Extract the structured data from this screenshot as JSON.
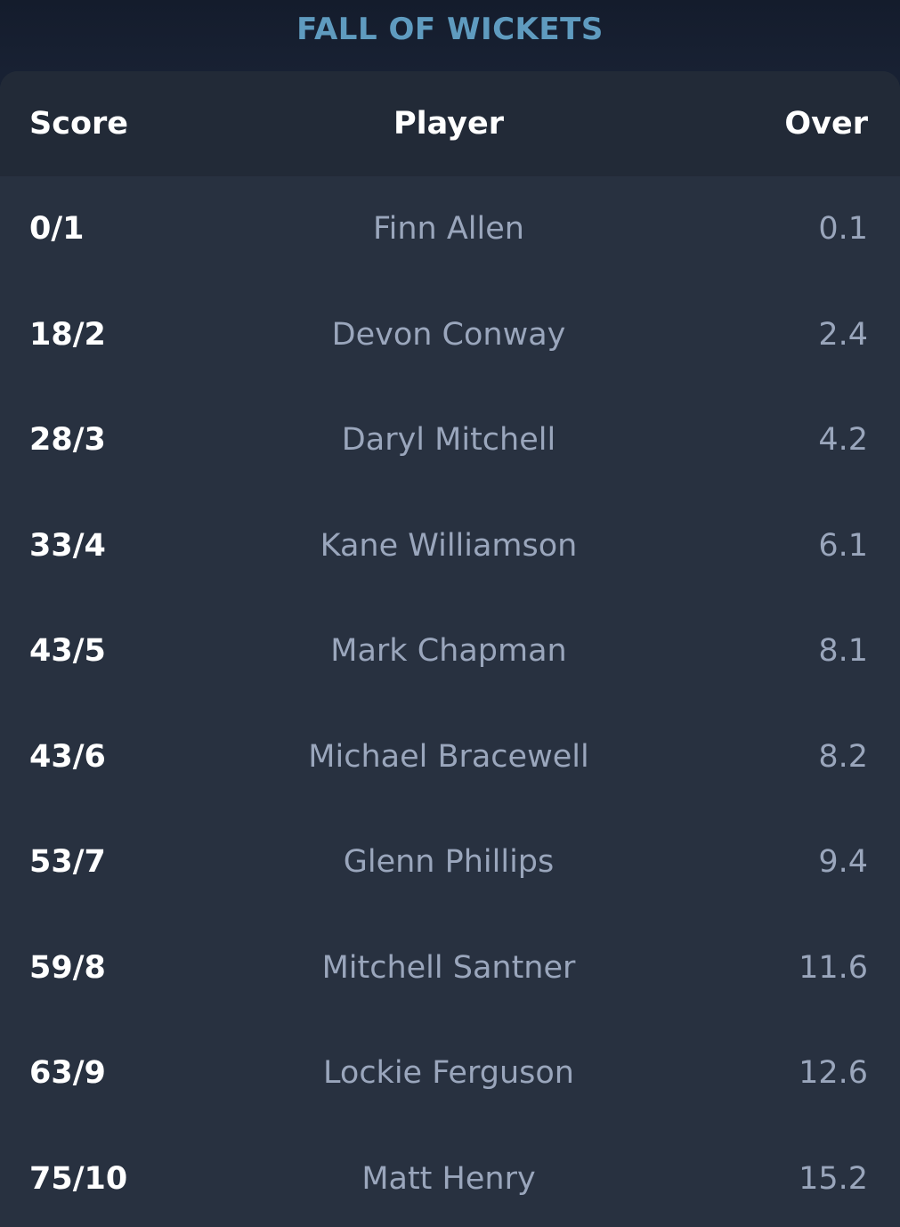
{
  "title": "FALL OF WICKETS",
  "columns": {
    "score": "Score",
    "player": "Player",
    "over": "Over"
  },
  "wickets": [
    {
      "score": "0/1",
      "player": "Finn Allen",
      "over": "0.1"
    },
    {
      "score": "18/2",
      "player": "Devon Conway",
      "over": "2.4"
    },
    {
      "score": "28/3",
      "player": "Daryl Mitchell",
      "over": "4.2"
    },
    {
      "score": "33/4",
      "player": "Kane Williamson",
      "over": "6.1"
    },
    {
      "score": "43/5",
      "player": "Mark Chapman",
      "over": "8.1"
    },
    {
      "score": "43/6",
      "player": "Michael Bracewell",
      "over": "8.2"
    },
    {
      "score": "53/7",
      "player": "Glenn Phillips",
      "over": "9.4"
    },
    {
      "score": "59/8",
      "player": "Mitchell Santner",
      "over": "11.6"
    },
    {
      "score": "63/9",
      "player": "Lockie Ferguson",
      "over": "12.6"
    },
    {
      "score": "75/10",
      "player": "Matt Henry",
      "over": "15.2"
    }
  ],
  "colors": {
    "title": "#5f9bbf",
    "card_background": "#283140",
    "header_background": "#222a37",
    "score_text": "#ffffff",
    "secondary_text": "#9aa6bc"
  }
}
